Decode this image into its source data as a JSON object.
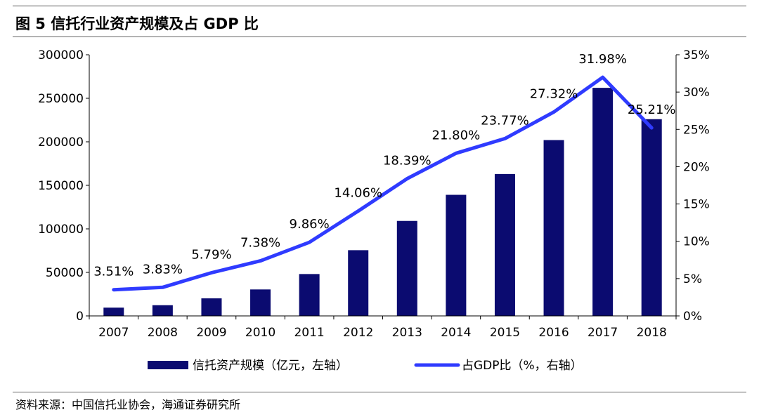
{
  "figure": {
    "title": "图 5 信托行业资产规模及占 GDP 比",
    "source": "资料来源：中国信托业协会，海通证券研究所"
  },
  "colors": {
    "bar": "#0b0b70",
    "line": "#2f3bff",
    "axis": "#000000"
  },
  "chart_data": {
    "type": "bar",
    "categories": [
      "2007",
      "2008",
      "2009",
      "2010",
      "2011",
      "2012",
      "2013",
      "2014",
      "2015",
      "2016",
      "2017",
      "2018"
    ],
    "series": [
      {
        "name": "信托资产规模（亿元，左轴）",
        "type": "bar",
        "axis": "left",
        "values": [
          9500,
          12300,
          20200,
          30400,
          48100,
          75500,
          109100,
          139100,
          163000,
          202000,
          262000,
          226000
        ]
      },
      {
        "name": "占GDP比（%，右轴）",
        "type": "line",
        "axis": "right",
        "values": [
          3.51,
          3.83,
          5.79,
          7.38,
          9.86,
          14.06,
          18.39,
          21.8,
          23.77,
          27.32,
          31.98,
          25.21
        ],
        "labels": [
          "3.51%",
          "3.83%",
          "5.79%",
          "7.38%",
          "9.86%",
          "14.06%",
          "18.39%",
          "21.80%",
          "23.77%",
          "27.32%",
          "31.98%",
          "25.21%"
        ]
      }
    ],
    "ylim_left": [
      0,
      300000
    ],
    "yticks_left": [
      "0",
      "50000",
      "100000",
      "150000",
      "200000",
      "250000",
      "300000"
    ],
    "ylim_right": [
      0,
      35
    ],
    "yticks_right": [
      "0%",
      "5%",
      "10%",
      "15%",
      "20%",
      "25%",
      "30%",
      "35%"
    ],
    "grid": false,
    "legend_position": "bottom"
  }
}
